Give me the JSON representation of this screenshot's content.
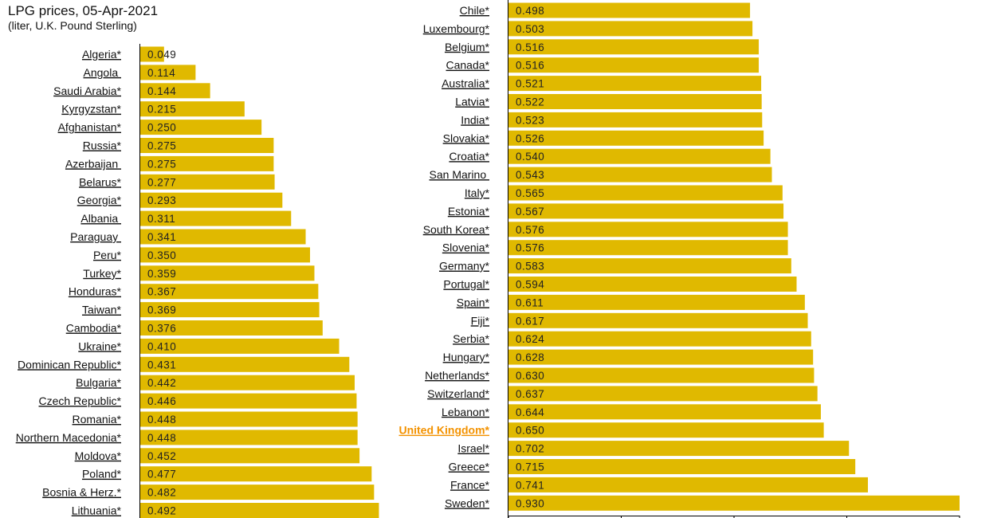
{
  "chart_data": {
    "type": "bar",
    "orientation": "horizontal",
    "title": "LPG prices, 05-Apr-2021",
    "subtitle": "(liter, U.K. Pound Sterling)",
    "bar_color": "#e0b900",
    "highlight_color": "#f39200",
    "highlight": "United Kingdom*",
    "xlim": [
      0,
      0.93
    ],
    "panels": [
      {
        "categories": [
          "Algeria*",
          "Angola ",
          "Saudi Arabia*",
          "Kyrgyzstan*",
          "Afghanistan*",
          "Russia*",
          "Azerbaijan ",
          "Belarus*",
          "Georgia*",
          "Albania ",
          "Paraguay ",
          "Peru*",
          "Turkey*",
          "Honduras*",
          "Taiwan*",
          "Cambodia*",
          "Ukraine*",
          "Dominican Republic*",
          "Bulgaria*",
          "Czech Republic*",
          "Romania*",
          "Northern Macedonia*",
          "Moldova*",
          "Poland*",
          "Bosnia & Herz.*",
          "Lithuania*"
        ],
        "values": [
          0.049,
          0.114,
          0.144,
          0.215,
          0.25,
          0.275,
          0.275,
          0.277,
          0.293,
          0.311,
          0.341,
          0.35,
          0.359,
          0.367,
          0.369,
          0.376,
          0.41,
          0.431,
          0.442,
          0.446,
          0.448,
          0.448,
          0.452,
          0.477,
          0.482,
          0.492
        ]
      },
      {
        "categories": [
          "Chile*",
          "Luxembourg*",
          "Belgium*",
          "Canada*",
          "Australia*",
          "Latvia*",
          "India*",
          "Slovakia*",
          "Croatia*",
          "San Marino ",
          "Italy*",
          "Estonia*",
          "South Korea*",
          "Slovenia*",
          "Germany*",
          "Portugal*",
          "Spain*",
          "Fiji*",
          "Serbia*",
          "Hungary*",
          "Netherlands*",
          "Switzerland*",
          "Lebanon*",
          "United Kingdom*",
          "Israel*",
          "Greece*",
          "France*",
          "Sweden*"
        ],
        "values": [
          0.498,
          0.503,
          0.516,
          0.516,
          0.521,
          0.522,
          0.523,
          0.526,
          0.54,
          0.543,
          0.565,
          0.567,
          0.576,
          0.576,
          0.583,
          0.594,
          0.611,
          0.617,
          0.624,
          0.628,
          0.63,
          0.637,
          0.644,
          0.65,
          0.702,
          0.715,
          0.741,
          0.93
        ]
      }
    ]
  }
}
